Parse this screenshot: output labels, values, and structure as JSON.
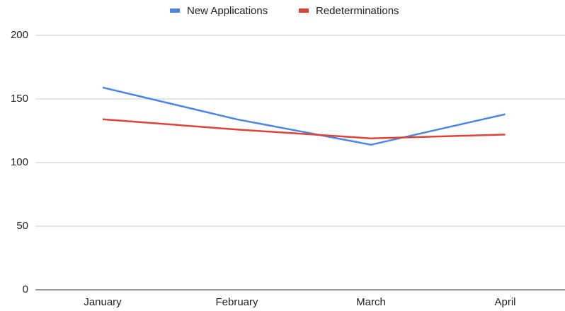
{
  "chart_data": {
    "type": "line",
    "categories": [
      "January",
      "February",
      "March",
      "April"
    ],
    "series": [
      {
        "name": "New Applications",
        "color": "#4a86e8",
        "values": [
          159,
          134,
          114,
          138
        ]
      },
      {
        "name": "Redeterminations",
        "color": "#db4437",
        "values": [
          134,
          126,
          119,
          122
        ]
      }
    ],
    "ylim": [
      0,
      200
    ],
    "yticks": [
      0,
      50,
      100,
      150,
      200
    ],
    "grid": true,
    "legend": "top"
  }
}
